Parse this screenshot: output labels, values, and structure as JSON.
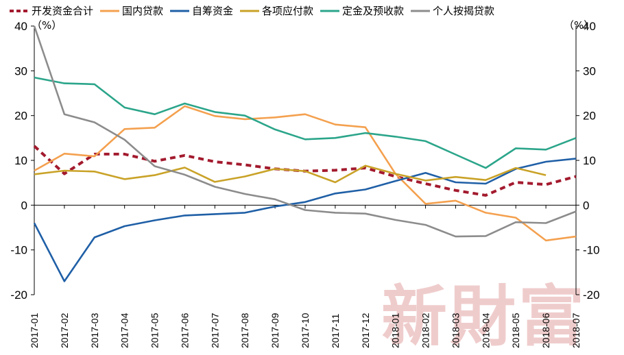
{
  "chart_data": {
    "type": "line",
    "title": "",
    "y_unit_left": "（%）",
    "y_unit_right": "（%）",
    "ylim": [
      -20,
      40
    ],
    "yticks": [
      40,
      30,
      20,
      10,
      0,
      -10,
      -20
    ],
    "grid": false,
    "legend_position": "top",
    "watermark": "新財富",
    "categories": [
      "2017-01",
      "2017-02",
      "2017-03",
      "2017-04",
      "2017-05",
      "2017-06",
      "2017-07",
      "2017-08",
      "2017-09",
      "2017-10",
      "2017-11",
      "2017-12",
      "2018-01",
      "2018-02",
      "2018-03",
      "2018-04",
      "2018-05",
      "2018-06",
      "2018-07"
    ],
    "series": [
      {
        "name": "开发资金合计",
        "color": "#a31a2e",
        "dashed": true,
        "values": [
          13.2,
          7.0,
          11.4,
          11.4,
          9.8,
          11.1,
          9.7,
          9.0,
          8.1,
          7.6,
          7.8,
          8.3,
          6.4,
          4.8,
          3.3,
          2.2,
          5.1,
          4.6,
          6.4
        ]
      },
      {
        "name": "国内贷款",
        "color": "#f4a04e",
        "dashed": false,
        "values": [
          7.7,
          11.5,
          10.9,
          17.0,
          17.3,
          22.1,
          19.9,
          19.2,
          19.6,
          20.3,
          18.0,
          17.4,
          7.0,
          0.3,
          1.0,
          -1.7,
          -2.8,
          -7.9,
          -7.0
        ]
      },
      {
        "name": "自筹资金",
        "color": "#1f5fa6",
        "dashed": false,
        "values": [
          -4.0,
          -17.0,
          -7.2,
          -4.7,
          -3.4,
          -2.3,
          -2.0,
          -1.7,
          -0.3,
          0.7,
          2.6,
          3.5,
          5.4,
          7.2,
          5.1,
          4.8,
          8.1,
          9.7,
          10.4
        ]
      },
      {
        "name": "各项应付款",
        "color": "#c9a227",
        "dashed": false,
        "values": [
          6.9,
          7.7,
          7.5,
          5.8,
          6.7,
          8.4,
          5.2,
          6.4,
          8.1,
          7.6,
          5.1,
          8.8,
          7.0,
          5.5,
          6.3,
          5.6,
          8.3,
          6.7,
          null
        ]
      },
      {
        "name": "定金及预收款",
        "color": "#2ba58a",
        "dashed": false,
        "values": [
          28.5,
          27.2,
          27.0,
          21.8,
          20.3,
          22.7,
          20.8,
          20.0,
          16.9,
          14.7,
          15.0,
          16.1,
          15.3,
          14.3,
          11.3,
          8.3,
          12.7,
          12.4,
          15.0
        ]
      },
      {
        "name": "个人按揭贷款",
        "color": "#8c8c8c",
        "dashed": false,
        "values": [
          40.0,
          20.3,
          18.5,
          14.6,
          8.7,
          6.8,
          4.1,
          2.5,
          1.3,
          -1.1,
          -1.7,
          -1.9,
          -3.3,
          -4.4,
          -7.0,
          -6.9,
          -3.8,
          -4.0,
          -1.4
        ]
      }
    ]
  }
}
